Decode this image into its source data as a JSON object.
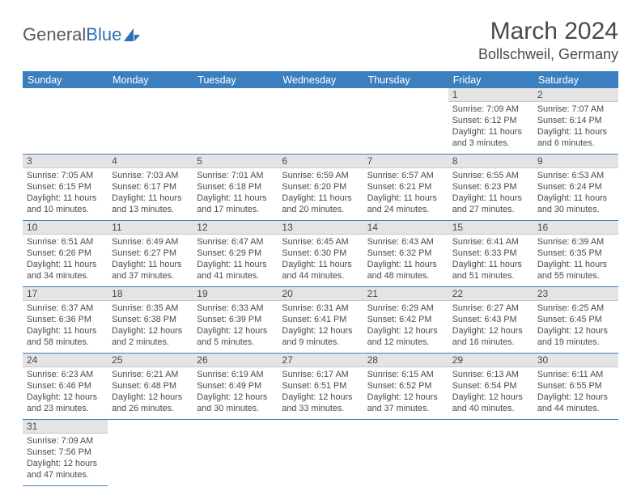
{
  "logo": {
    "text1": "General",
    "text2": "Blue"
  },
  "title": "March 2024",
  "subtitle": "Bollschweil, Germany",
  "header_bg": "#3b7fbf",
  "weekdays": [
    "Sunday",
    "Monday",
    "Tuesday",
    "Wednesday",
    "Thursday",
    "Friday",
    "Saturday"
  ],
  "weeks": [
    [
      null,
      null,
      null,
      null,
      null,
      {
        "n": "1",
        "sr": "Sunrise: 7:09 AM",
        "ss": "Sunset: 6:12 PM",
        "dl": "Daylight: 11 hours and 3 minutes."
      },
      {
        "n": "2",
        "sr": "Sunrise: 7:07 AM",
        "ss": "Sunset: 6:14 PM",
        "dl": "Daylight: 11 hours and 6 minutes."
      }
    ],
    [
      {
        "n": "3",
        "sr": "Sunrise: 7:05 AM",
        "ss": "Sunset: 6:15 PM",
        "dl": "Daylight: 11 hours and 10 minutes."
      },
      {
        "n": "4",
        "sr": "Sunrise: 7:03 AM",
        "ss": "Sunset: 6:17 PM",
        "dl": "Daylight: 11 hours and 13 minutes."
      },
      {
        "n": "5",
        "sr": "Sunrise: 7:01 AM",
        "ss": "Sunset: 6:18 PM",
        "dl": "Daylight: 11 hours and 17 minutes."
      },
      {
        "n": "6",
        "sr": "Sunrise: 6:59 AM",
        "ss": "Sunset: 6:20 PM",
        "dl": "Daylight: 11 hours and 20 minutes."
      },
      {
        "n": "7",
        "sr": "Sunrise: 6:57 AM",
        "ss": "Sunset: 6:21 PM",
        "dl": "Daylight: 11 hours and 24 minutes."
      },
      {
        "n": "8",
        "sr": "Sunrise: 6:55 AM",
        "ss": "Sunset: 6:23 PM",
        "dl": "Daylight: 11 hours and 27 minutes."
      },
      {
        "n": "9",
        "sr": "Sunrise: 6:53 AM",
        "ss": "Sunset: 6:24 PM",
        "dl": "Daylight: 11 hours and 30 minutes."
      }
    ],
    [
      {
        "n": "10",
        "sr": "Sunrise: 6:51 AM",
        "ss": "Sunset: 6:26 PM",
        "dl": "Daylight: 11 hours and 34 minutes."
      },
      {
        "n": "11",
        "sr": "Sunrise: 6:49 AM",
        "ss": "Sunset: 6:27 PM",
        "dl": "Daylight: 11 hours and 37 minutes."
      },
      {
        "n": "12",
        "sr": "Sunrise: 6:47 AM",
        "ss": "Sunset: 6:29 PM",
        "dl": "Daylight: 11 hours and 41 minutes."
      },
      {
        "n": "13",
        "sr": "Sunrise: 6:45 AM",
        "ss": "Sunset: 6:30 PM",
        "dl": "Daylight: 11 hours and 44 minutes."
      },
      {
        "n": "14",
        "sr": "Sunrise: 6:43 AM",
        "ss": "Sunset: 6:32 PM",
        "dl": "Daylight: 11 hours and 48 minutes."
      },
      {
        "n": "15",
        "sr": "Sunrise: 6:41 AM",
        "ss": "Sunset: 6:33 PM",
        "dl": "Daylight: 11 hours and 51 minutes."
      },
      {
        "n": "16",
        "sr": "Sunrise: 6:39 AM",
        "ss": "Sunset: 6:35 PM",
        "dl": "Daylight: 11 hours and 55 minutes."
      }
    ],
    [
      {
        "n": "17",
        "sr": "Sunrise: 6:37 AM",
        "ss": "Sunset: 6:36 PM",
        "dl": "Daylight: 11 hours and 58 minutes."
      },
      {
        "n": "18",
        "sr": "Sunrise: 6:35 AM",
        "ss": "Sunset: 6:38 PM",
        "dl": "Daylight: 12 hours and 2 minutes."
      },
      {
        "n": "19",
        "sr": "Sunrise: 6:33 AM",
        "ss": "Sunset: 6:39 PM",
        "dl": "Daylight: 12 hours and 5 minutes."
      },
      {
        "n": "20",
        "sr": "Sunrise: 6:31 AM",
        "ss": "Sunset: 6:41 PM",
        "dl": "Daylight: 12 hours and 9 minutes."
      },
      {
        "n": "21",
        "sr": "Sunrise: 6:29 AM",
        "ss": "Sunset: 6:42 PM",
        "dl": "Daylight: 12 hours and 12 minutes."
      },
      {
        "n": "22",
        "sr": "Sunrise: 6:27 AM",
        "ss": "Sunset: 6:43 PM",
        "dl": "Daylight: 12 hours and 16 minutes."
      },
      {
        "n": "23",
        "sr": "Sunrise: 6:25 AM",
        "ss": "Sunset: 6:45 PM",
        "dl": "Daylight: 12 hours and 19 minutes."
      }
    ],
    [
      {
        "n": "24",
        "sr": "Sunrise: 6:23 AM",
        "ss": "Sunset: 6:46 PM",
        "dl": "Daylight: 12 hours and 23 minutes."
      },
      {
        "n": "25",
        "sr": "Sunrise: 6:21 AM",
        "ss": "Sunset: 6:48 PM",
        "dl": "Daylight: 12 hours and 26 minutes."
      },
      {
        "n": "26",
        "sr": "Sunrise: 6:19 AM",
        "ss": "Sunset: 6:49 PM",
        "dl": "Daylight: 12 hours and 30 minutes."
      },
      {
        "n": "27",
        "sr": "Sunrise: 6:17 AM",
        "ss": "Sunset: 6:51 PM",
        "dl": "Daylight: 12 hours and 33 minutes."
      },
      {
        "n": "28",
        "sr": "Sunrise: 6:15 AM",
        "ss": "Sunset: 6:52 PM",
        "dl": "Daylight: 12 hours and 37 minutes."
      },
      {
        "n": "29",
        "sr": "Sunrise: 6:13 AM",
        "ss": "Sunset: 6:54 PM",
        "dl": "Daylight: 12 hours and 40 minutes."
      },
      {
        "n": "30",
        "sr": "Sunrise: 6:11 AM",
        "ss": "Sunset: 6:55 PM",
        "dl": "Daylight: 12 hours and 44 minutes."
      }
    ],
    [
      {
        "n": "31",
        "sr": "Sunrise: 7:09 AM",
        "ss": "Sunset: 7:56 PM",
        "dl": "Daylight: 12 hours and 47 minutes."
      },
      null,
      null,
      null,
      null,
      null,
      null
    ]
  ]
}
